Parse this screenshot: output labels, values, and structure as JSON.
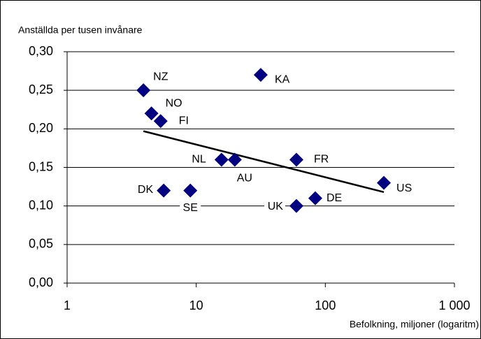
{
  "chart_data": {
    "type": "scatter",
    "y_label": "Anställda per tusen invånare",
    "x_label": "Befolkning, miljoner (logaritm)",
    "x_log": true,
    "grid": true,
    "color": "#000080",
    "xlim": [
      1,
      1000
    ],
    "xticks": [
      1,
      10,
      100,
      {
        "value": 1000,
        "label": "1 000"
      }
    ],
    "ylim": [
      0,
      0.3
    ],
    "yticks": [
      {
        "value": 0,
        "label": "0,00"
      },
      {
        "value": 0.05,
        "label": "0,05"
      },
      {
        "value": 0.1,
        "label": "0,10"
      },
      {
        "value": 0.15,
        "label": "0,15"
      },
      {
        "value": 0.2,
        "label": "0,20"
      },
      {
        "value": 0.25,
        "label": "0,25"
      },
      {
        "value": 0.3,
        "label": "0,30"
      }
    ],
    "labels": [
      "NZ",
      "KA",
      "NO",
      "FI",
      "NL",
      "AU",
      "FR",
      "US",
      "DK",
      "SE",
      "UK",
      "DE"
    ],
    "x": [
      3.9,
      31.6,
      4.5,
      5.3,
      15.7,
      19.9,
      59.7,
      284,
      5.6,
      9.0,
      59.7,
      83.6
    ],
    "y": [
      0.25,
      0.27,
      0.22,
      0.21,
      0.16,
      0.16,
      0.16,
      0.13,
      0.12,
      0.12,
      0.1,
      0.11
    ],
    "trendline": {
      "color": "#000000",
      "x": [
        3.9,
        284
      ],
      "y": [
        0.197,
        0.118
      ]
    }
  }
}
